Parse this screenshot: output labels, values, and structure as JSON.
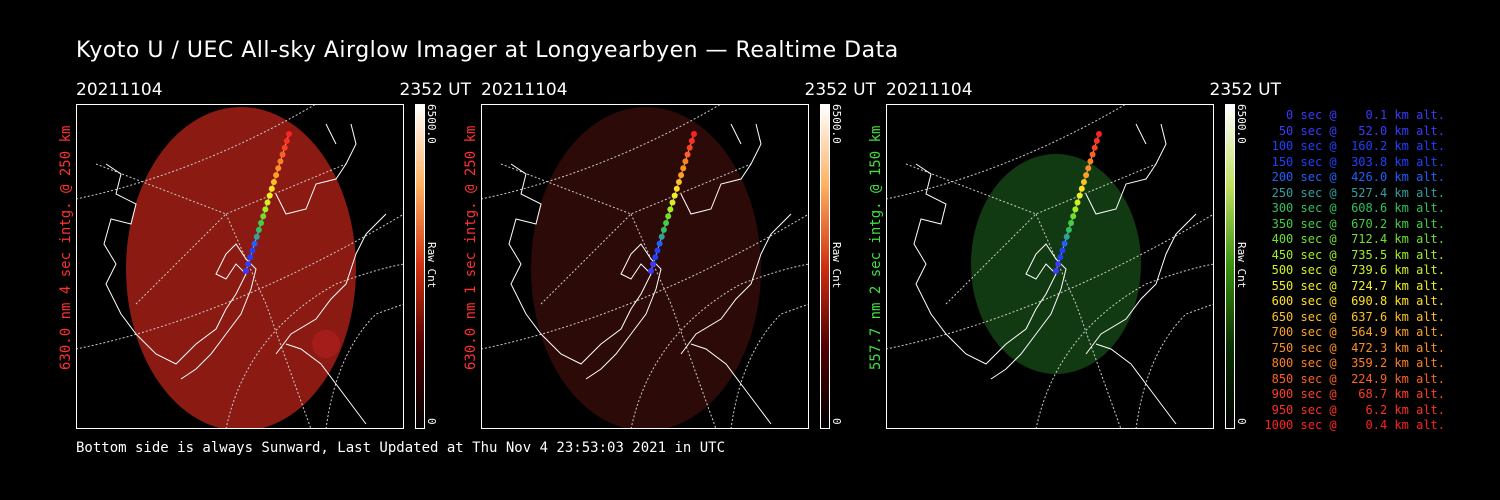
{
  "title": "Kyoto U / UEC All-sky Airglow Imager at Longyearbyen — Realtime Data",
  "footer": "Bottom side is always Sunward, Last Updated at Thu Nov  4 23:53:03 2021 in UTC",
  "panels": [
    {
      "date": "20211104",
      "time": "2352 UT",
      "ylabel": "630.0 nm 4 sec intg. @ 250 km",
      "ylabel_color": "#ff3030",
      "cbar_max": "6500.0",
      "cbar_min": "0",
      "cbar_label": "Raw Cnt",
      "tint": "#8a1a12"
    },
    {
      "date": "20211104",
      "time": "2352 UT",
      "ylabel": "630.0 nm 1 sec intg. @ 250 km",
      "ylabel_color": "#ff3030",
      "cbar_max": "6500.0",
      "cbar_min": "0",
      "cbar_label": "Raw Cnt",
      "tint": "#2c0a08"
    },
    {
      "date": "20211104",
      "time": "2352 UT",
      "ylabel": "557.7 nm 2 sec intg. @ 150 km",
      "ylabel_color": "#40e040",
      "cbar_max": "6500.0",
      "cbar_min": "0",
      "cbar_label": "Raw Cnt",
      "tint": "#123a12"
    }
  ],
  "legend": [
    {
      "text": "0 sec @    0.1 km alt.",
      "color": "#3a3aff"
    },
    {
      "text": "50 sec @   52.0 km alt.",
      "color": "#3a3aff"
    },
    {
      "text": "100 sec @  160.2 km alt.",
      "color": "#2040ff"
    },
    {
      "text": "150 sec @  303.8 km alt.",
      "color": "#2040ff"
    },
    {
      "text": "200 sec @  426.0 km alt.",
      "color": "#2060ff"
    },
    {
      "text": "250 sec @  527.4 km alt.",
      "color": "#30a0a0"
    },
    {
      "text": "300 sec @  608.6 km alt.",
      "color": "#30c060"
    },
    {
      "text": "350 sec @  670.2 km alt.",
      "color": "#40d040"
    },
    {
      "text": "400 sec @  712.4 km alt.",
      "color": "#70e030"
    },
    {
      "text": "450 sec @  735.5 km alt.",
      "color": "#a0f020"
    },
    {
      "text": "500 sec @  739.6 km alt.",
      "color": "#d0f020"
    },
    {
      "text": "550 sec @  724.7 km alt.",
      "color": "#f0f020"
    },
    {
      "text": "600 sec @  690.8 km alt.",
      "color": "#ffe020"
    },
    {
      "text": "650 sec @  637.6 km alt.",
      "color": "#ffc020"
    },
    {
      "text": "700 sec @  564.9 km alt.",
      "color": "#ffa020"
    },
    {
      "text": "750 sec @  472.3 km alt.",
      "color": "#ff9020"
    },
    {
      "text": "800 sec @  359.2 km alt.",
      "color": "#ff8020"
    },
    {
      "text": "850 sec @  224.9 km alt.",
      "color": "#ff6020"
    },
    {
      "text": "900 sec @   68.7 km alt.",
      "color": "#ff4020"
    },
    {
      "text": "950 sec @    6.2 km alt.",
      "color": "#ff3020"
    },
    {
      "text": "1000 sec @    0.4 km alt.",
      "color": "#ff2020"
    }
  ]
}
